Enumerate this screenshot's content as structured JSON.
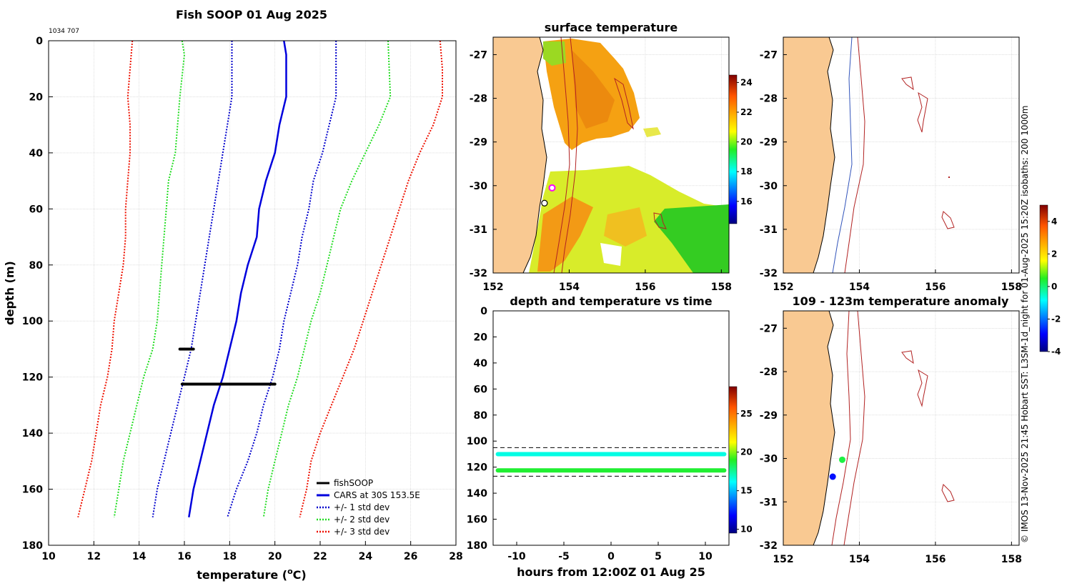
{
  "main_title": "Fish SOOP 01 Aug 2025",
  "id_label": "1034 707",
  "side_text": "© IMOS 13-Nov-2025 21:45 Hobart SST: L3SM-1d_night for 01-Aug-2025 15:20Z isobaths: 200  1000m",
  "colors": {
    "fishsoop": "#000000",
    "cars": "#0000dd",
    "std1": "#0000cc",
    "std2": "#22dd22",
    "std3": "#ee1100",
    "land": "#f9c992",
    "isobath_red": "#b22222",
    "isobath_blue": "#3355bb",
    "grid": "#cccccc"
  },
  "chart_data": [
    {
      "id": "profile",
      "type": "line",
      "title": "Fish SOOP 01 Aug 2025",
      "xlabel_prefix": "temperature (",
      "xlabel_sup": "o",
      "xlabel_suffix": "C)",
      "ylabel": "depth (m)",
      "xlim": [
        10,
        28
      ],
      "ylim": [
        0,
        180
      ],
      "y_reversed": true,
      "xticks": [
        "10",
        "12",
        "14",
        "16",
        "18",
        "20",
        "22",
        "24",
        "26",
        "28"
      ],
      "yticks": [
        "0",
        "20",
        "40",
        "60",
        "80",
        "100",
        "120",
        "140",
        "160",
        "180"
      ],
      "grid": true,
      "legend": [
        {
          "label": "fishSOOP",
          "style": "solid",
          "color_key": "fishsoop"
        },
        {
          "label": "CARS at 30S 153.5E",
          "style": "solid",
          "color_key": "cars"
        },
        {
          "label": "+/- 1 std dev",
          "style": "dotted",
          "color_key": "std1"
        },
        {
          "label": "+/- 2 std dev",
          "style": "dotted",
          "color_key": "std2"
        },
        {
          "label": "+/- 3 std dev",
          "style": "dotted",
          "color_key": "std3"
        }
      ],
      "legend_position": "bottom-right",
      "series": [
        {
          "name": "CARS at 30S 153.5E",
          "color_key": "cars",
          "dash": "solid",
          "points": [
            [
              20.4,
              0
            ],
            [
              20.5,
              5
            ],
            [
              20.5,
              20
            ],
            [
              20.2,
              30
            ],
            [
              20.0,
              40
            ],
            [
              19.6,
              50
            ],
            [
              19.3,
              60
            ],
            [
              19.2,
              70
            ],
            [
              18.8,
              80
            ],
            [
              18.5,
              90
            ],
            [
              18.3,
              100
            ],
            [
              18.0,
              110
            ],
            [
              17.7,
              120
            ],
            [
              17.3,
              130
            ],
            [
              17.0,
              140
            ],
            [
              16.7,
              150
            ],
            [
              16.4,
              160
            ],
            [
              16.2,
              170
            ]
          ]
        },
        {
          "name": "+1 std",
          "color_key": "std1",
          "dash": "dotted",
          "points": [
            [
              22.7,
              0
            ],
            [
              22.7,
              20
            ],
            [
              22.4,
              30
            ],
            [
              22.1,
              40
            ],
            [
              21.7,
              50
            ],
            [
              21.5,
              60
            ],
            [
              21.2,
              70
            ],
            [
              21.0,
              80
            ],
            [
              20.7,
              90
            ],
            [
              20.4,
              100
            ],
            [
              20.2,
              110
            ],
            [
              19.9,
              120
            ],
            [
              19.5,
              130
            ],
            [
              19.2,
              140
            ],
            [
              18.8,
              150
            ],
            [
              18.3,
              160
            ],
            [
              17.9,
              170
            ]
          ]
        },
        {
          "name": "-1 std",
          "color_key": "std1",
          "dash": "dotted",
          "points": [
            [
              18.1,
              0
            ],
            [
              18.1,
              20
            ],
            [
              17.9,
              30
            ],
            [
              17.7,
              40
            ],
            [
              17.5,
              50
            ],
            [
              17.3,
              60
            ],
            [
              17.1,
              70
            ],
            [
              16.9,
              80
            ],
            [
              16.7,
              90
            ],
            [
              16.5,
              100
            ],
            [
              16.3,
              110
            ],
            [
              16.0,
              120
            ],
            [
              15.7,
              130
            ],
            [
              15.4,
              140
            ],
            [
              15.1,
              150
            ],
            [
              14.8,
              160
            ],
            [
              14.6,
              170
            ]
          ]
        },
        {
          "name": "+2 std",
          "color_key": "std2",
          "dash": "dotted",
          "points": [
            [
              25.0,
              0
            ],
            [
              25.1,
              20
            ],
            [
              24.6,
              30
            ],
            [
              24.0,
              40
            ],
            [
              23.4,
              50
            ],
            [
              22.9,
              60
            ],
            [
              22.6,
              70
            ],
            [
              22.3,
              80
            ],
            [
              22.0,
              90
            ],
            [
              21.6,
              100
            ],
            [
              21.3,
              110
            ],
            [
              21.0,
              120
            ],
            [
              20.6,
              130
            ],
            [
              20.3,
              140
            ],
            [
              20.0,
              150
            ],
            [
              19.7,
              160
            ],
            [
              19.5,
              170
            ]
          ]
        },
        {
          "name": "-2 std",
          "color_key": "std2",
          "dash": "dotted",
          "points": [
            [
              15.9,
              0
            ],
            [
              16.0,
              5
            ],
            [
              15.8,
              20
            ],
            [
              15.7,
              30
            ],
            [
              15.6,
              40
            ],
            [
              15.3,
              50
            ],
            [
              15.2,
              60
            ],
            [
              15.1,
              70
            ],
            [
              15.0,
              80
            ],
            [
              14.9,
              90
            ],
            [
              14.8,
              100
            ],
            [
              14.6,
              110
            ],
            [
              14.2,
              120
            ],
            [
              13.9,
              130
            ],
            [
              13.6,
              140
            ],
            [
              13.3,
              150
            ],
            [
              13.1,
              160
            ],
            [
              12.9,
              170
            ]
          ]
        },
        {
          "name": "+3 std",
          "color_key": "std3",
          "dash": "dotted",
          "points": [
            [
              27.3,
              0
            ],
            [
              27.4,
              10
            ],
            [
              27.4,
              20
            ],
            [
              27.0,
              30
            ],
            [
              26.4,
              40
            ],
            [
              25.9,
              50
            ],
            [
              25.5,
              60
            ],
            [
              25.1,
              70
            ],
            [
              24.7,
              80
            ],
            [
              24.3,
              90
            ],
            [
              23.9,
              100
            ],
            [
              23.5,
              110
            ],
            [
              23.0,
              120
            ],
            [
              22.5,
              130
            ],
            [
              22.0,
              140
            ],
            [
              21.6,
              150
            ],
            [
              21.4,
              160
            ],
            [
              21.1,
              170
            ]
          ]
        },
        {
          "name": "-3 std",
          "color_key": "std3",
          "dash": "dotted",
          "points": [
            [
              13.7,
              0
            ],
            [
              13.6,
              10
            ],
            [
              13.5,
              20
            ],
            [
              13.6,
              30
            ],
            [
              13.6,
              40
            ],
            [
              13.5,
              50
            ],
            [
              13.4,
              60
            ],
            [
              13.4,
              70
            ],
            [
              13.3,
              80
            ],
            [
              13.1,
              90
            ],
            [
              12.9,
              100
            ],
            [
              12.8,
              110
            ],
            [
              12.6,
              120
            ],
            [
              12.3,
              130
            ],
            [
              12.1,
              140
            ],
            [
              11.9,
              150
            ],
            [
              11.6,
              160
            ],
            [
              11.3,
              170
            ]
          ]
        }
      ],
      "fishsoop": [
        {
          "t_range": [
            15.8,
            16.4
          ],
          "depth": 110
        },
        {
          "t_range": [
            15.9,
            20.0
          ],
          "depth": 122.5
        }
      ]
    },
    {
      "id": "sst_map",
      "type": "heatmap",
      "title": "surface temperature",
      "xlim": [
        152,
        158.2
      ],
      "ylim": [
        -32,
        -26.6
      ],
      "xticks": [
        "152",
        "154",
        "156",
        "158"
      ],
      "yticks": [
        "-27",
        "-28",
        "-29",
        "-30",
        "-31",
        "-32"
      ],
      "colorbar": {
        "range": [
          14.5,
          24.5
        ],
        "ticks": [
          "24",
          "22",
          "20",
          "18",
          "16"
        ]
      },
      "markers": [
        {
          "lon": 153.55,
          "lat": -30.05,
          "style": "magenta-circle"
        },
        {
          "lon": 153.35,
          "lat": -30.4,
          "style": "black-circle"
        }
      ]
    },
    {
      "id": "isobath_map",
      "type": "map",
      "title": "",
      "xlim": [
        152,
        158.2
      ],
      "ylim": [
        -32,
        -26.6
      ],
      "xticks": [
        "152",
        "154",
        "156",
        "158"
      ],
      "yticks": [
        "-27",
        "-28",
        "-29",
        "-30",
        "-31",
        "-32"
      ],
      "colorbar": {
        "range": [
          -4,
          5
        ],
        "ticks": [
          "4",
          "2",
          "0",
          "-2",
          "-4"
        ]
      }
    },
    {
      "id": "depth_time",
      "type": "scatter",
      "title": "depth and temperature vs time",
      "xlabel": "hours from 12:00Z 01 Aug 25",
      "xlim": [
        -12.5,
        12.5
      ],
      "ylim": [
        0,
        180
      ],
      "y_reversed": true,
      "xticks": [
        "-10",
        "-5",
        "0",
        "5",
        "10"
      ],
      "yticks": [
        "0",
        "20",
        "40",
        "60",
        "80",
        "100",
        "120",
        "140",
        "160",
        "180"
      ],
      "dashed_depths": [
        105,
        127
      ],
      "colorbar": {
        "range": [
          9.5,
          28.5
        ],
        "ticks": [
          "25",
          "20",
          "15",
          "10"
        ]
      },
      "series": [
        {
          "name": "upper",
          "depth": 110,
          "temp": 16.5,
          "t_range": [
            -12,
            12
          ]
        },
        {
          "name": "lower",
          "depth": 122.5,
          "temp": 18.8,
          "t_range": [
            -12,
            12
          ]
        }
      ]
    },
    {
      "id": "anomaly_map",
      "type": "map",
      "title": "109 - 123m temperature anomaly",
      "xlim": [
        152,
        158.2
      ],
      "ylim": [
        -32,
        -26.6
      ],
      "xticks": [
        "152",
        "154",
        "156",
        "158"
      ],
      "yticks": [
        "-27",
        "-28",
        "-29",
        "-30",
        "-31",
        "-32"
      ],
      "points": [
        {
          "lon": 153.55,
          "lat": -30.03,
          "anomaly": 0.3
        },
        {
          "lon": 153.3,
          "lat": -30.42,
          "anomaly": -2.8
        }
      ]
    }
  ]
}
